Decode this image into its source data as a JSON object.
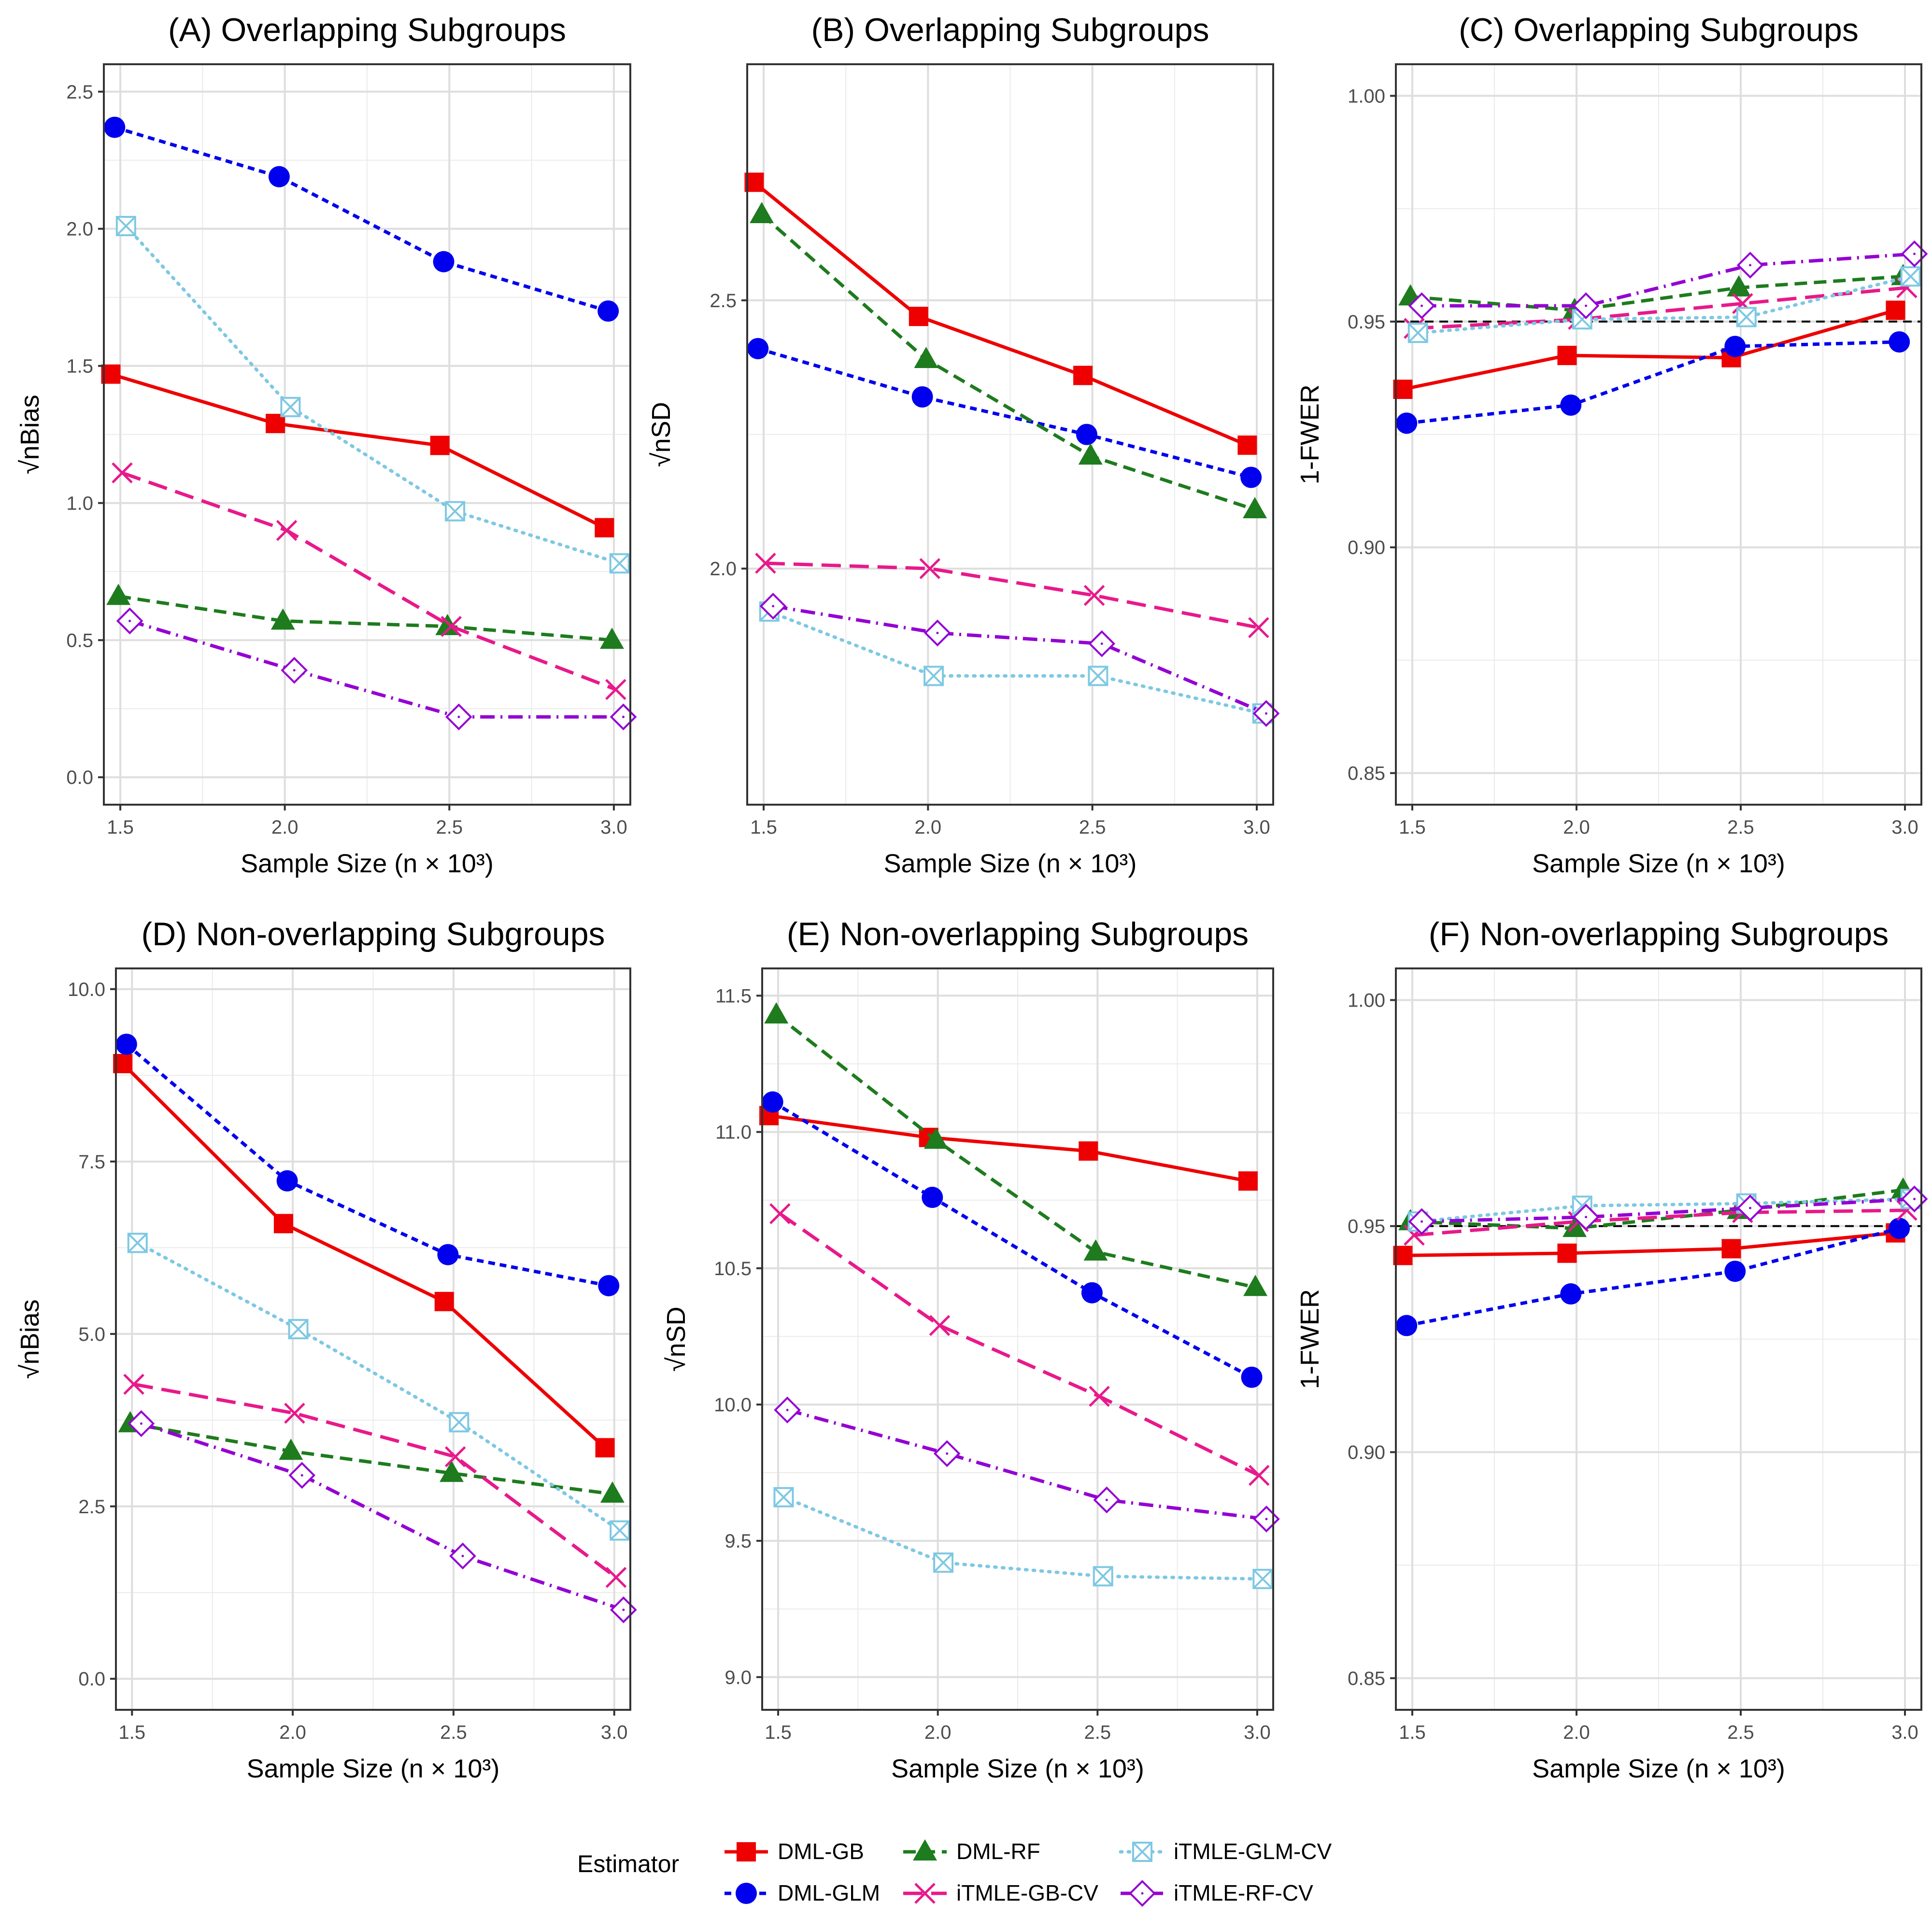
{
  "figure": {
    "legend_title": "Estimator",
    "legend_entries": [
      "DML-GB",
      "DML-GLM",
      "DML-RF",
      "iTMLE-GB-CV",
      "iTMLE-GLM-CV",
      "iTMLE-RF-CV"
    ]
  },
  "series_styles": [
    {
      "name": "DML-GB",
      "color": "#ee0000",
      "dash": "solid",
      "marker": "filled-square"
    },
    {
      "name": "DML-GLM",
      "color": "#0000ee",
      "dash": "dotted-short",
      "marker": "filled-circle"
    },
    {
      "name": "DML-RF",
      "color": "#1e7b1e",
      "dash": "dashed",
      "marker": "filled-triangle"
    },
    {
      "name": "iTMLE-GB-CV",
      "color": "#e8198b",
      "dash": "long-dash",
      "marker": "x-cross"
    },
    {
      "name": "iTMLE-GLM-CV",
      "color": "#7ec8e3",
      "dash": "dotted",
      "marker": "boxed-x"
    },
    {
      "name": "iTMLE-RF-CV",
      "color": "#9400d3",
      "dash": "dot-dash",
      "marker": "open-diamond"
    }
  ],
  "reference_line_color": "#000000",
  "chart_data": [
    {
      "panel": "A",
      "type": "line",
      "title": "(A) Overlapping Subgroups",
      "xlabel": "Sample Size (n × 10³)",
      "ylabel": "√nBias",
      "x": [
        1.5,
        2.0,
        2.5,
        3.0
      ],
      "x_ticks": [
        1.5,
        2.0,
        2.5,
        3.0
      ],
      "x_tick_labels": [
        "1.5",
        "2.0",
        "2.5",
        "3.0"
      ],
      "xlim": [
        1.45,
        3.05
      ],
      "y_ticks": [
        0.0,
        0.5,
        1.0,
        1.5,
        2.0,
        2.5
      ],
      "y_tick_labels": [
        "0.0",
        "0.5",
        "1.0",
        "1.5",
        "2.0",
        "2.5"
      ],
      "ylim": [
        -0.1,
        2.6
      ],
      "grid": true,
      "series": [
        {
          "name": "DML-GB",
          "values": [
            1.47,
            1.29,
            1.21,
            0.91
          ]
        },
        {
          "name": "DML-GLM",
          "values": [
            2.37,
            2.19,
            1.88,
            1.7
          ]
        },
        {
          "name": "DML-RF",
          "values": [
            0.66,
            0.57,
            0.55,
            0.5
          ]
        },
        {
          "name": "iTMLE-GB-CV",
          "values": [
            1.11,
            0.9,
            0.55,
            0.32
          ]
        },
        {
          "name": "iTMLE-GLM-CV",
          "values": [
            2.01,
            1.35,
            0.97,
            0.78
          ]
        },
        {
          "name": "iTMLE-RF-CV",
          "values": [
            0.57,
            0.39,
            0.22,
            0.22
          ]
        }
      ]
    },
    {
      "panel": "B",
      "type": "line",
      "title": "(B) Overlapping Subgroups",
      "xlabel": "Sample Size (n × 10³)",
      "ylabel": "√nSD",
      "x": [
        1.5,
        2.0,
        2.5,
        3.0
      ],
      "x_ticks": [
        1.5,
        2.0,
        2.5,
        3.0
      ],
      "x_tick_labels": [
        "1.5",
        "2.0",
        "2.5",
        "3.0"
      ],
      "xlim": [
        1.45,
        3.05
      ],
      "y_ticks": [
        2.0,
        2.5
      ],
      "y_tick_labels": [
        "2.0",
        "2.5"
      ],
      "ylim": [
        1.56,
        2.94
      ],
      "grid": true,
      "series": [
        {
          "name": "DML-GB",
          "values": [
            2.72,
            2.47,
            2.36,
            2.23
          ]
        },
        {
          "name": "DML-GLM",
          "values": [
            2.41,
            2.32,
            2.25,
            2.17
          ]
        },
        {
          "name": "DML-RF",
          "values": [
            2.66,
            2.39,
            2.21,
            2.11
          ]
        },
        {
          "name": "iTMLE-GB-CV",
          "values": [
            2.01,
            2.0,
            1.95,
            1.89
          ]
        },
        {
          "name": "iTMLE-GLM-CV",
          "values": [
            1.92,
            1.8,
            1.8,
            1.73
          ]
        },
        {
          "name": "iTMLE-RF-CV",
          "values": [
            1.93,
            1.88,
            1.86,
            1.73
          ]
        }
      ]
    },
    {
      "panel": "C",
      "type": "line",
      "title": "(C) Overlapping Subgroups",
      "xlabel": "Sample Size (n × 10³)",
      "ylabel": "1-FWER",
      "x": [
        1.5,
        2.0,
        2.5,
        3.0
      ],
      "x_ticks": [
        1.5,
        2.0,
        2.5,
        3.0
      ],
      "x_tick_labels": [
        "1.5",
        "2.0",
        "2.5",
        "3.0"
      ],
      "xlim": [
        1.45,
        3.05
      ],
      "y_ticks": [
        0.85,
        0.9,
        0.95,
        1.0
      ],
      "y_tick_labels": [
        "0.85",
        "0.90",
        "0.95",
        "1.00"
      ],
      "ylim": [
        0.843,
        1.007
      ],
      "grid": true,
      "reference_line": 0.95,
      "series": [
        {
          "name": "DML-GB",
          "values": [
            0.935,
            0.9425,
            0.942,
            0.9525
          ]
        },
        {
          "name": "DML-GLM",
          "values": [
            0.9275,
            0.9315,
            0.9445,
            0.9455
          ]
        },
        {
          "name": "DML-RF",
          "values": [
            0.9555,
            0.9525,
            0.9575,
            0.96
          ]
        },
        {
          "name": "iTMLE-GB-CV",
          "values": [
            0.9485,
            0.9505,
            0.954,
            0.9575
          ]
        },
        {
          "name": "iTMLE-GLM-CV",
          "values": [
            0.9475,
            0.9505,
            0.951,
            0.96
          ]
        },
        {
          "name": "iTMLE-RF-CV",
          "values": [
            0.9535,
            0.9535,
            0.9625,
            0.965
          ]
        }
      ]
    },
    {
      "panel": "D",
      "type": "line",
      "title": "(D) Non-overlapping Subgroups",
      "xlabel": "Sample Size (n × 10³)",
      "ylabel": "√nBias",
      "x": [
        1.5,
        2.0,
        2.5,
        3.0
      ],
      "x_ticks": [
        1.5,
        2.0,
        2.5,
        3.0
      ],
      "x_tick_labels": [
        "1.5",
        "2.0",
        "2.5",
        "3.0"
      ],
      "xlim": [
        1.45,
        3.05
      ],
      "y_ticks": [
        0.0,
        2.5,
        5.0,
        7.5,
        10.0
      ],
      "y_tick_labels": [
        "0.0",
        "2.5",
        "5.0",
        "7.5",
        "10.0"
      ],
      "ylim": [
        -0.45,
        10.3
      ],
      "grid": true,
      "series": [
        {
          "name": "DML-GB",
          "values": [
            8.92,
            6.6,
            5.47,
            3.35
          ]
        },
        {
          "name": "DML-GLM",
          "values": [
            9.2,
            7.22,
            6.15,
            5.7
          ]
        },
        {
          "name": "DML-RF",
          "values": [
            3.7,
            3.3,
            2.98,
            2.68
          ]
        },
        {
          "name": "iTMLE-GB-CV",
          "values": [
            4.27,
            3.85,
            3.22,
            1.47
          ]
        },
        {
          "name": "iTMLE-GLM-CV",
          "values": [
            6.32,
            5.07,
            3.72,
            2.15
          ]
        },
        {
          "name": "iTMLE-RF-CV",
          "values": [
            3.7,
            2.95,
            1.78,
            1.0
          ]
        }
      ]
    },
    {
      "panel": "E",
      "type": "line",
      "title": "(E) Non-overlapping Subgroups",
      "xlabel": "Sample Size (n × 10³)",
      "ylabel": "√nSD",
      "x": [
        1.5,
        2.0,
        2.5,
        3.0
      ],
      "x_ticks": [
        1.5,
        2.0,
        2.5,
        3.0
      ],
      "x_tick_labels": [
        "1.5",
        "2.0",
        "2.5",
        "3.0"
      ],
      "xlim": [
        1.45,
        3.05
      ],
      "y_ticks": [
        9.0,
        9.5,
        10.0,
        10.5,
        11.0,
        11.5
      ],
      "y_tick_labels": [
        "9.0",
        "9.5",
        "10.0",
        "10.5",
        "11.0",
        "11.5"
      ],
      "ylim": [
        8.88,
        11.6
      ],
      "grid": true,
      "series": [
        {
          "name": "DML-GB",
          "values": [
            11.06,
            10.98,
            10.93,
            10.82
          ]
        },
        {
          "name": "DML-GLM",
          "values": [
            11.11,
            10.76,
            10.41,
            10.1
          ]
        },
        {
          "name": "DML-RF",
          "values": [
            11.43,
            10.97,
            10.56,
            10.43
          ]
        },
        {
          "name": "iTMLE-GB-CV",
          "values": [
            10.7,
            10.29,
            10.03,
            9.74
          ]
        },
        {
          "name": "iTMLE-GLM-CV",
          "values": [
            9.66,
            9.42,
            9.37,
            9.36
          ]
        },
        {
          "name": "iTMLE-RF-CV",
          "values": [
            9.98,
            9.82,
            9.65,
            9.58
          ]
        }
      ]
    },
    {
      "panel": "F",
      "type": "line",
      "title": "(F) Non-overlapping Subgroups",
      "xlabel": "Sample Size (n × 10³)",
      "ylabel": "1-FWER",
      "x": [
        1.5,
        2.0,
        2.5,
        3.0
      ],
      "x_ticks": [
        1.5,
        2.0,
        2.5,
        3.0
      ],
      "x_tick_labels": [
        "1.5",
        "2.0",
        "2.5",
        "3.0"
      ],
      "xlim": [
        1.45,
        3.05
      ],
      "y_ticks": [
        0.85,
        0.9,
        0.95,
        1.0
      ],
      "y_tick_labels": [
        "0.85",
        "0.90",
        "0.95",
        "1.00"
      ],
      "ylim": [
        0.843,
        1.007
      ],
      "grid": true,
      "reference_line": 0.95,
      "series": [
        {
          "name": "DML-GB",
          "values": [
            0.9435,
            0.944,
            0.945,
            0.9485
          ]
        },
        {
          "name": "DML-GLM",
          "values": [
            0.928,
            0.935,
            0.94,
            0.9495
          ]
        },
        {
          "name": "DML-RF",
          "values": [
            0.951,
            0.9495,
            0.9535,
            0.958
          ]
        },
        {
          "name": "iTMLE-GB-CV",
          "values": [
            0.948,
            0.951,
            0.953,
            0.9535
          ]
        },
        {
          "name": "iTMLE-GLM-CV",
          "values": [
            0.951,
            0.9545,
            0.955,
            0.956
          ]
        },
        {
          "name": "iTMLE-RF-CV",
          "values": [
            0.951,
            0.952,
            0.954,
            0.956
          ]
        }
      ]
    }
  ]
}
